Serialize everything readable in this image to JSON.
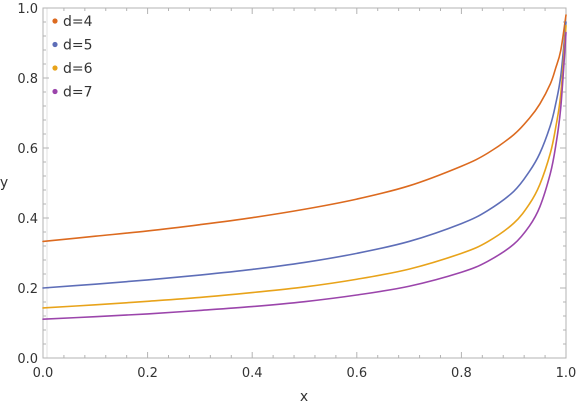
{
  "chart_data": {
    "type": "line",
    "xlabel": "x",
    "ylabel": "y",
    "xlim": [
      0,
      1
    ],
    "ylim": [
      0,
      1
    ],
    "x_ticks": [
      "0.0",
      "0.2",
      "0.4",
      "0.6",
      "0.8",
      "1.0"
    ],
    "y_ticks": [
      "0.0",
      "0.2",
      "0.4",
      "0.6",
      "0.8",
      "1.0"
    ],
    "grid": false,
    "legend_position": "top-left",
    "x": [
      0.0,
      0.1,
      0.2,
      0.3,
      0.4,
      0.5,
      0.6,
      0.7,
      0.8,
      0.85,
      0.9,
      0.93,
      0.95,
      0.97,
      0.98,
      0.99,
      1.0
    ],
    "series": [
      {
        "name": "d=4",
        "color": "#DC6A1F",
        "values": [
          0.333,
          0.348,
          0.363,
          0.381,
          0.401,
          0.425,
          0.454,
          0.492,
          0.548,
          0.585,
          0.638,
          0.685,
          0.726,
          0.783,
          0.827,
          0.879,
          0.98
        ]
      },
      {
        "name": "d=5",
        "color": "#5E6EB8",
        "values": [
          0.2,
          0.211,
          0.223,
          0.237,
          0.253,
          0.273,
          0.299,
          0.333,
          0.384,
          0.421,
          0.476,
          0.533,
          0.585,
          0.664,
          0.724,
          0.806,
          0.96
        ]
      },
      {
        "name": "d=6",
        "color": "#E8A31A",
        "values": [
          0.143,
          0.152,
          0.162,
          0.173,
          0.187,
          0.203,
          0.225,
          0.254,
          0.299,
          0.332,
          0.385,
          0.44,
          0.496,
          0.585,
          0.656,
          0.754,
          0.95
        ]
      },
      {
        "name": "d=7",
        "color": "#9B45AB",
        "values": [
          0.111,
          0.118,
          0.126,
          0.136,
          0.147,
          0.161,
          0.18,
          0.205,
          0.245,
          0.276,
          0.325,
          0.377,
          0.432,
          0.527,
          0.603,
          0.716,
          0.93
        ]
      }
    ]
  }
}
